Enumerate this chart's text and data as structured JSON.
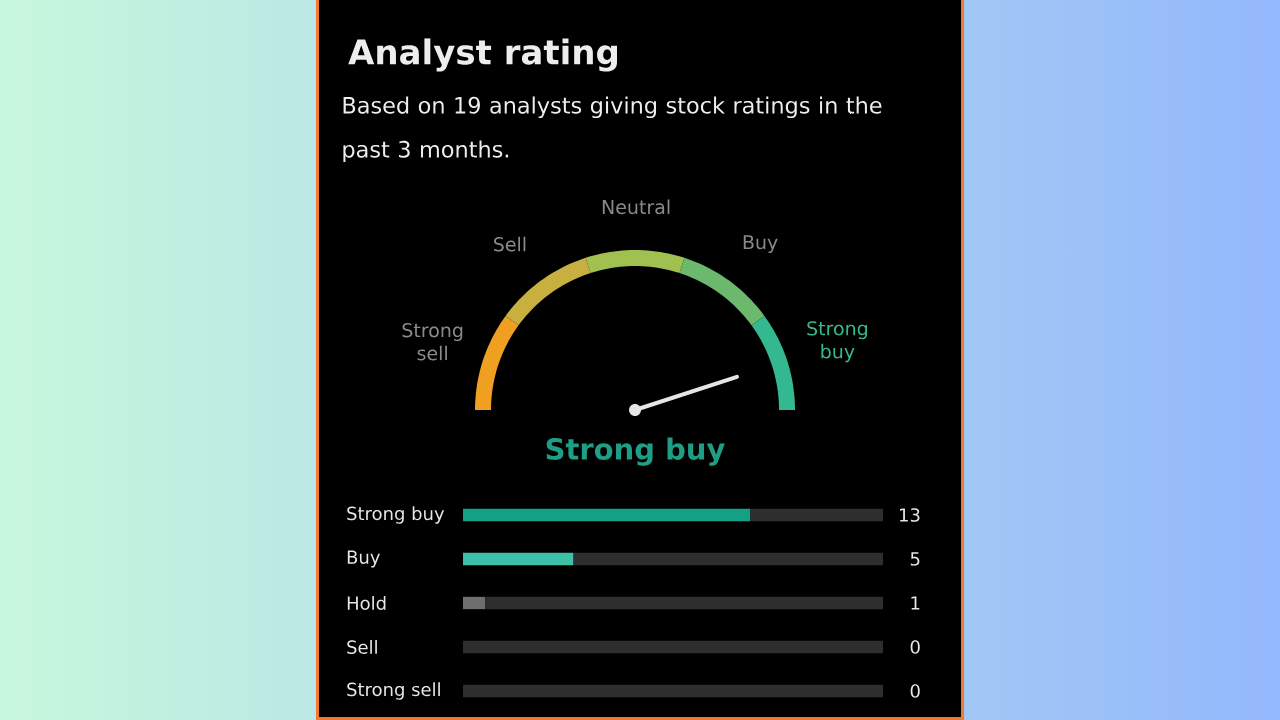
{
  "chart_data": [
    {
      "type": "donut",
      "title": "Analyst rating",
      "subtitle": "Based on 19 analysts giving stock ratings in the past 3 months.",
      "categories": [
        "Strong sell",
        "Sell",
        "Neutral",
        "Buy",
        "Strong buy"
      ],
      "values": [
        20,
        20,
        20,
        20,
        20
      ],
      "colors": [
        "#f0a020",
        "#c8b040",
        "#a0c050",
        "#6cb86c",
        "#34b890"
      ],
      "needle": "Strong buy",
      "annotations": [
        "Strong buy"
      ]
    },
    {
      "type": "bar",
      "orientation": "horizontal",
      "stacked": true,
      "categories": [
        "Strong buy",
        "Buy",
        "Hold",
        "Sell",
        "Strong sell"
      ],
      "xlim": [
        0,
        19
      ],
      "tick_labels": "y",
      "series": [
        {
          "colors": [
            "#14a085",
            "#3cc0a8",
            "#6e6e6e",
            "#6e6e6e",
            "#6e6e6e"
          ],
          "values": [
            13,
            5,
            1,
            0,
            0
          ],
          "value_labels": [
            "13",
            "5",
            "1",
            "0",
            "0"
          ]
        },
        {
          "color": "#2e2e2e",
          "values": [
            6,
            14,
            18,
            19,
            19
          ]
        }
      ]
    }
  ]
}
